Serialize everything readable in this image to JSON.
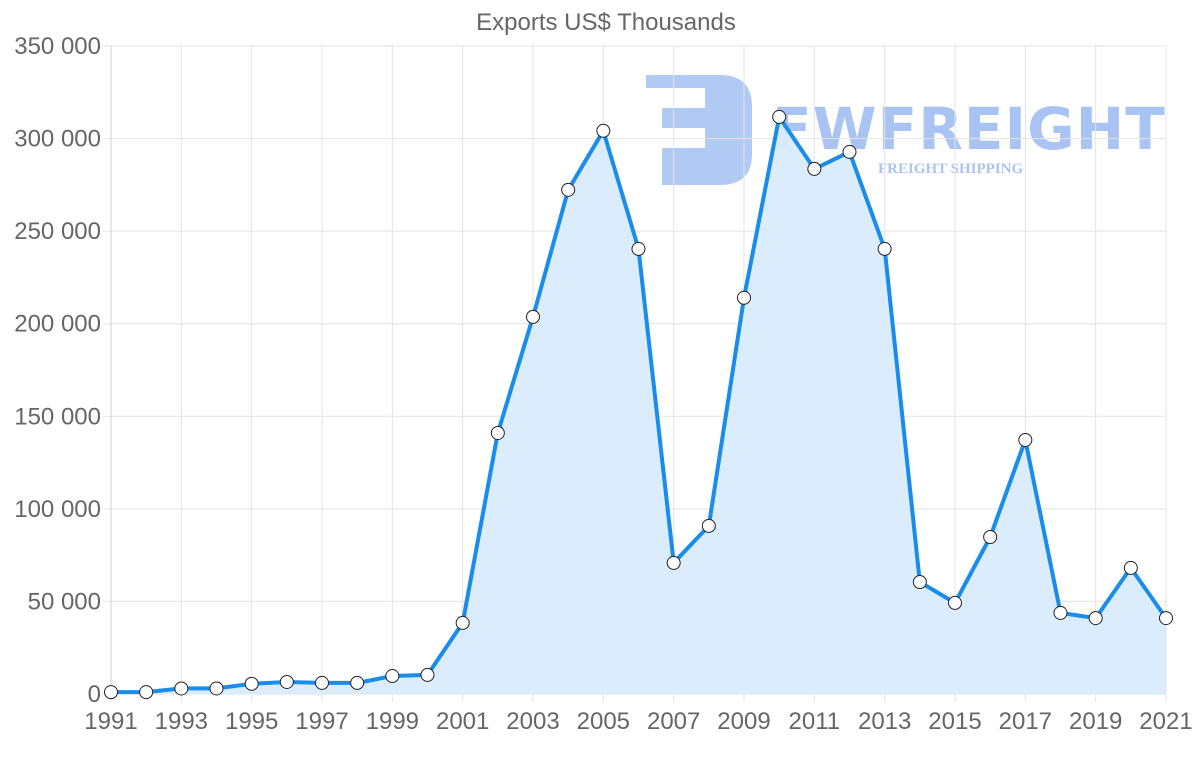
{
  "chart_data": {
    "type": "line",
    "title": "Exports US$ Thousands",
    "xlabel": "",
    "ylabel": "",
    "ylim": [
      0,
      350000
    ],
    "grid": true,
    "fill": true,
    "legend": null,
    "x": [
      1991,
      1992,
      1993,
      1994,
      1995,
      1996,
      1997,
      1998,
      1999,
      2000,
      2001,
      2002,
      2003,
      2004,
      2005,
      2006,
      2007,
      2008,
      2009,
      2010,
      2011,
      2012,
      2013,
      2014,
      2015,
      2016,
      2017,
      2018,
      2019,
      2020,
      2021
    ],
    "series": [
      {
        "name": "Exports",
        "color": "#1a8ceb",
        "fill_color": "#d9ecfc",
        "values": [
          1000,
          1000,
          3000,
          3000,
          5500,
          6500,
          6000,
          6000,
          9700,
          10300,
          38400,
          141000,
          203700,
          272300,
          304200,
          240400,
          70800,
          90800,
          214000,
          311700,
          283600,
          292800,
          240400,
          60500,
          49200,
          84800,
          137200,
          43800,
          41000,
          68100,
          41000
        ]
      }
    ],
    "y_ticks": [
      "0",
      "50 000",
      "100 000",
      "150 000",
      "200 000",
      "250 000",
      "300 000",
      "350 000"
    ],
    "y_tick_values": [
      0,
      50000,
      100000,
      150000,
      200000,
      250000,
      300000,
      350000
    ],
    "x_tick_labels": [
      "1991",
      "1993",
      "1995",
      "1997",
      "1999",
      "2001",
      "2003",
      "2005",
      "2007",
      "2009",
      "2011",
      "2013",
      "2015",
      "2017",
      "2019",
      "2021"
    ]
  },
  "watermark": {
    "brand": "FWFREIGHT",
    "tagline": "FREIGHT SHIPPING",
    "color": "#a9c4f2"
  }
}
